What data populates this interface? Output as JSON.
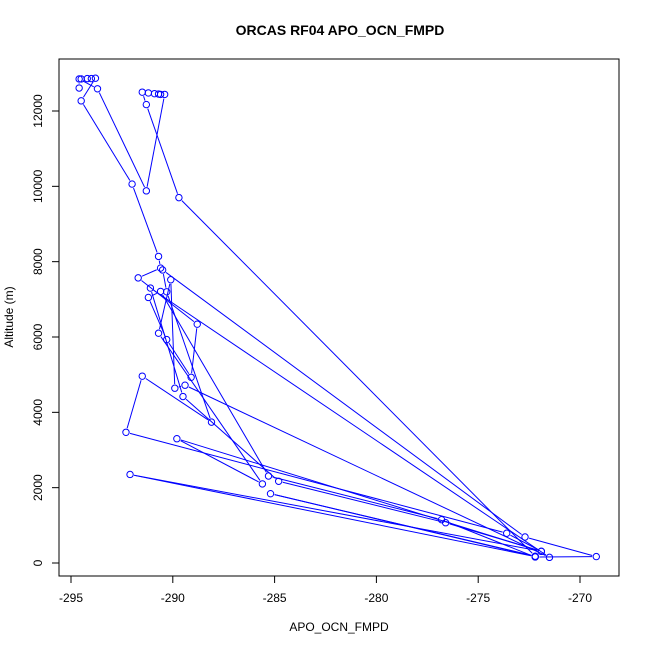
{
  "chart_data": {
    "type": "line",
    "title": "ORCAS RF04 APO_OCN_FMPD",
    "xlabel": "APO_OCN_FMPD",
    "ylabel": "Altitude (m)",
    "xlim": [
      -295,
      -270
    ],
    "ylim": [
      0,
      12000
    ],
    "x_ticks": [
      -295,
      -290,
      -285,
      -280,
      -275,
      -270
    ],
    "y_ticks": [
      0,
      2000,
      4000,
      6000,
      8000,
      10000,
      12000
    ],
    "x_tick_labels": [
      "-295",
      "-290",
      "-285",
      "-280",
      "-275",
      "-270"
    ],
    "y_tick_labels": [
      "0",
      "2000",
      "4000",
      "6000",
      "8000",
      "10000",
      "12000"
    ],
    "grid": false,
    "legend": false,
    "series": [
      {
        "color": "#0000ff",
        "marker": "open-circle",
        "points": [
          [
            -294.5,
            12850
          ],
          [
            -294.2,
            12860
          ],
          [
            -294.0,
            12860
          ],
          [
            -293.8,
            12870
          ],
          [
            -294.5,
            12270
          ],
          [
            -292.0,
            10060
          ],
          [
            -290.7,
            8140
          ],
          [
            -290.6,
            7830
          ],
          [
            -291.7,
            7570
          ],
          [
            -288.8,
            6340
          ],
          [
            -289.1,
            4930
          ],
          [
            -290.3,
            5930
          ],
          [
            -291.2,
            7050
          ],
          [
            -290.6,
            7210
          ],
          [
            -285.3,
            2310
          ],
          [
            -276.8,
            1150
          ],
          [
            -272.2,
            160
          ],
          [
            -269.2,
            170
          ],
          [
            -272.7,
            690
          ],
          [
            -290.5,
            7780
          ],
          [
            -290.3,
            7200
          ],
          [
            -288.1,
            3740
          ],
          [
            -291.5,
            4960
          ],
          [
            -292.3,
            3470
          ],
          [
            -273.6,
            790
          ],
          [
            -271.9,
            310
          ],
          [
            -289.8,
            3300
          ],
          [
            -285.6,
            2100
          ],
          [
            -290.7,
            6100
          ],
          [
            -290.1,
            7520
          ],
          [
            -289.9,
            4640
          ],
          [
            -289.4,
            4720
          ],
          [
            -271.5,
            150
          ],
          [
            -291.1,
            7300
          ],
          [
            -289.5,
            4420
          ],
          [
            -284.8,
            2170
          ],
          [
            -276.6,
            1070
          ],
          [
            -271.9,
            310
          ],
          [
            -292.1,
            2350
          ],
          [
            -272.2,
            170
          ],
          [
            -285.2,
            1840
          ],
          [
            -272.2,
            180
          ],
          [
            -289.7,
            9700
          ],
          [
            -291.3,
            12170
          ],
          [
            -291.5,
            12500
          ],
          [
            -291.2,
            12480
          ],
          [
            -290.9,
            12460
          ],
          [
            -290.7,
            12450
          ],
          [
            -290.6,
            12440
          ],
          [
            -290.4,
            12440
          ],
          [
            -291.3,
            9880
          ],
          [
            -293.7,
            12590
          ],
          [
            -294.6,
            12850
          ],
          [
            -294.6,
            12610
          ]
        ]
      }
    ]
  }
}
